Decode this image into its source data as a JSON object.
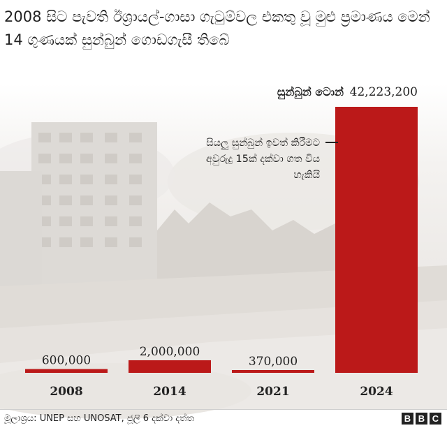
{
  "title": "2008 සිට පැවති ඊශ්‍රායල්-ගාසා ගැටුම්වල එකතු වූ මුළු ප්‍රමාණය මෙන් 14 ගුණයක් සුන්බුන් ගොඩගැසී තිබේ",
  "chart_data": {
    "type": "bar",
    "categories": [
      "2008",
      "2014",
      "2021",
      "2024"
    ],
    "values": [
      600000,
      2000000,
      370000,
      42223200
    ],
    "value_labels": [
      "600,000",
      "2,000,000",
      "370,000",
      "42,223,200"
    ],
    "unit_label": "සුන්බුන් ටොන්",
    "annotation": [
      "සියලු සුන්බුන් ඉවත් කිරීමට",
      "අවුරුදු 15ක් දක්වා ගත විය",
      "හැකියි"
    ],
    "ylim": [
      0,
      42223200
    ],
    "bar_color": "#bb1919",
    "grid": false
  },
  "source": "මූලාශ්‍රය: UNEP සහ UNOSAT, ජූලි 6 දක්වා දත්ත",
  "logo": [
    "B",
    "B",
    "C"
  ]
}
